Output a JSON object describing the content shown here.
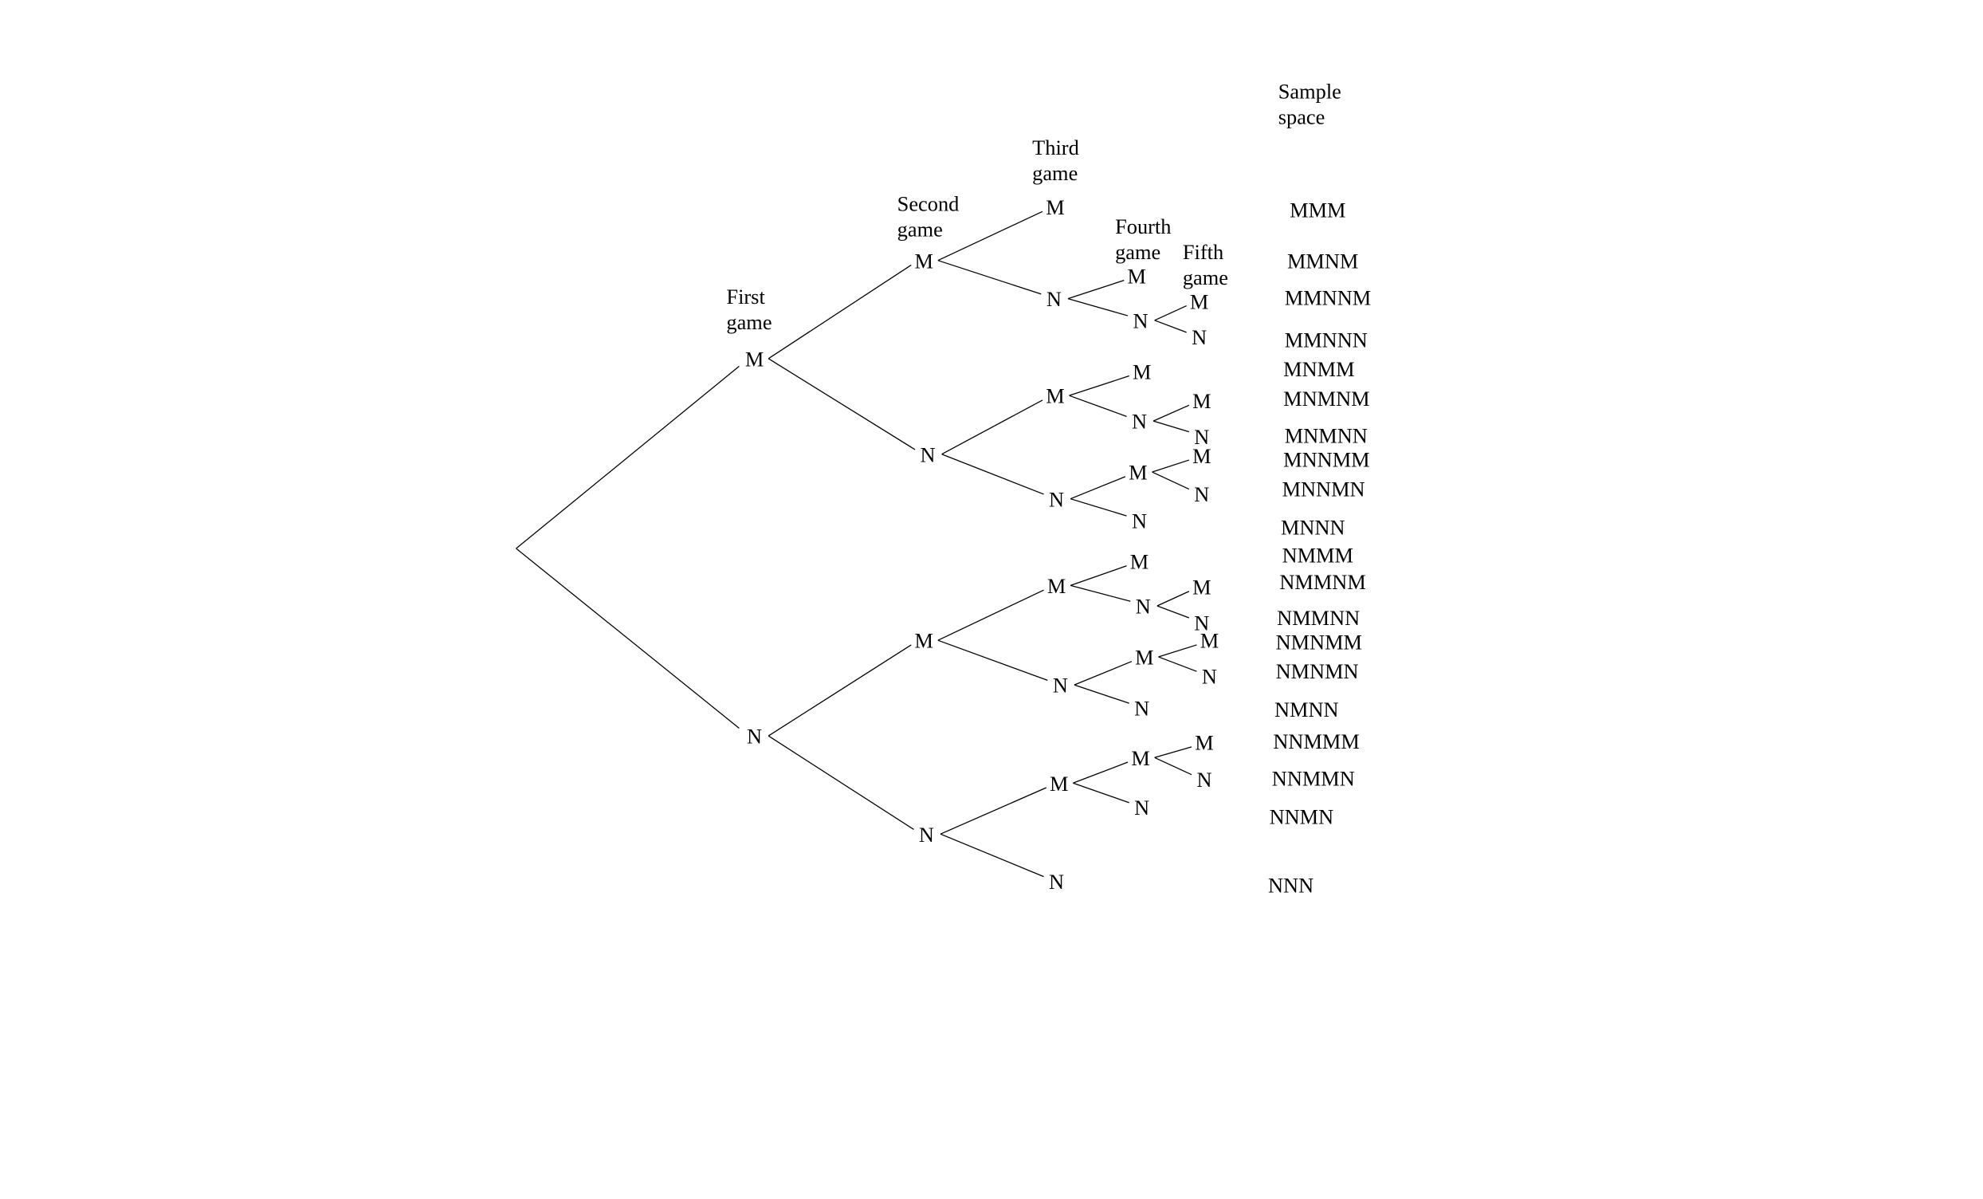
{
  "headers": {
    "first": [
      "First",
      "game"
    ],
    "second": [
      "Second",
      "game"
    ],
    "third": [
      "Third",
      "game"
    ],
    "fourth": [
      "Fourth",
      "game"
    ],
    "fifth": [
      "Fifth",
      "game"
    ],
    "sample_space": [
      "Sample",
      "space"
    ]
  },
  "tree": {
    "M": {
      "label": "M"
    },
    "N": {
      "label": "N"
    },
    "MM": {
      "label": "M"
    },
    "MN": {
      "label": "N"
    },
    "NM": {
      "label": "M"
    },
    "NN": {
      "label": "N"
    },
    "MMM": {
      "label": "M"
    },
    "MMN": {
      "label": "N"
    },
    "MNM": {
      "label": "M"
    },
    "MNN": {
      "label": "N"
    },
    "NMM": {
      "label": "M"
    },
    "NMN": {
      "label": "N"
    },
    "NNM": {
      "label": "M"
    },
    "NNN": {
      "label": "N"
    },
    "MMNM": {
      "label": "M"
    },
    "MMNN": {
      "label": "N"
    },
    "MNMM": {
      "label": "M"
    },
    "MNMN": {
      "label": "N"
    },
    "MNNM": {
      "label": "M"
    },
    "MNNN": {
      "label": "N"
    },
    "NMMM": {
      "label": "M"
    },
    "NMMN": {
      "label": "N"
    },
    "NMNM": {
      "label": "M"
    },
    "NMNN": {
      "label": "N"
    },
    "NNMM": {
      "label": "M"
    },
    "NNMN": {
      "label": "N"
    },
    "MMNNM": {
      "label": "M"
    },
    "MMNNN": {
      "label": "N"
    },
    "MNMNM": {
      "label": "M"
    },
    "MNMNN": {
      "label": "N"
    },
    "MNNMM": {
      "label": "M"
    },
    "MNNMN": {
      "label": "N"
    },
    "NMMNM": {
      "label": "M"
    },
    "NMMNN": {
      "label": "N"
    },
    "NMNMM": {
      "label": "M"
    },
    "NMNMN": {
      "label": "N"
    },
    "NNMMM": {
      "label": "M"
    },
    "NNMMN": {
      "label": "N"
    }
  },
  "sample_space": [
    "MMM",
    "MMNM",
    "MMNNM",
    "MMNNN",
    "MNMM",
    "MNMNM",
    "MNMNN",
    "MNNMM",
    "MNNMN",
    "MNNN",
    "NMMM",
    "NMMNM",
    "NMMNN",
    "NMNMM",
    "NMNMN",
    "NMNN",
    "NNMMM",
    "NNMMN",
    "NNMN",
    "NNN"
  ]
}
